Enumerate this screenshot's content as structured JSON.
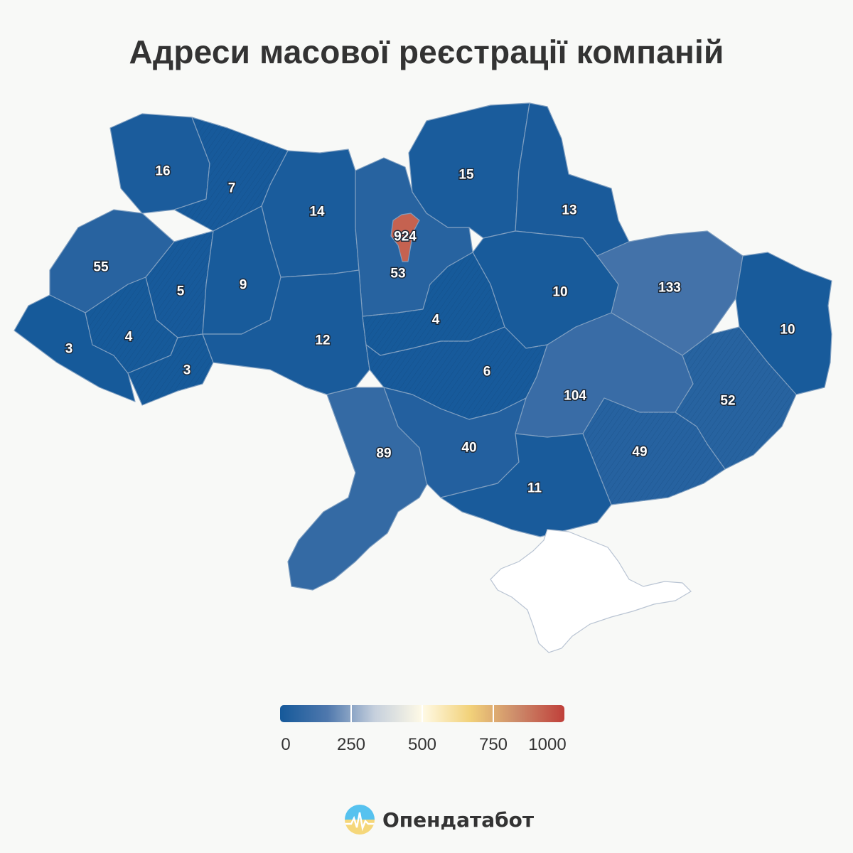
{
  "title": "Адреси масової реєстрації компаній",
  "scale": {
    "min": 0,
    "max": 1000,
    "ticks": [
      "0",
      "250",
      "500",
      "750",
      "1000"
    ],
    "colors": [
      "#15599a",
      "#4f78ad",
      "#c6d0dd",
      "#fffae6",
      "#f2d27a",
      "#cc8a6a",
      "#c0403a"
    ]
  },
  "regions": [
    {
      "name": "Волинська",
      "value": 16,
      "label": "16"
    },
    {
      "name": "Рівненська",
      "value": 7,
      "label": "7"
    },
    {
      "name": "Житомирська",
      "value": 14,
      "label": "14"
    },
    {
      "name": "Київська",
      "value": 53,
      "label": "53"
    },
    {
      "name": "м. Київ",
      "value": 924,
      "label": "924"
    },
    {
      "name": "Чернігівська",
      "value": 15,
      "label": "15"
    },
    {
      "name": "Сумська",
      "value": 13,
      "label": "13"
    },
    {
      "name": "Львівська",
      "value": 55,
      "label": "55"
    },
    {
      "name": "Тернопільська",
      "value": 5,
      "label": "5"
    },
    {
      "name": "Хмельницька",
      "value": 9,
      "label": "9"
    },
    {
      "name": "Полтавська",
      "value": 10,
      "label": "10"
    },
    {
      "name": "Харківська",
      "value": 133,
      "label": "133"
    },
    {
      "name": "Луганська",
      "value": 10,
      "label": "10"
    },
    {
      "name": "Закарпатська",
      "value": 3,
      "label": "3"
    },
    {
      "name": "Івано-Франківська",
      "value": 4,
      "label": "4"
    },
    {
      "name": "Чернівецька",
      "value": 3,
      "label": "3"
    },
    {
      "name": "Вінницька",
      "value": 12,
      "label": "12"
    },
    {
      "name": "Черкаська",
      "value": 4,
      "label": "4"
    },
    {
      "name": "Кіровоградська",
      "value": 6,
      "label": "6"
    },
    {
      "name": "Дніпропетровська",
      "value": 104,
      "label": "104"
    },
    {
      "name": "Донецька",
      "value": 52,
      "label": "52"
    },
    {
      "name": "Одеська",
      "value": 89,
      "label": "89"
    },
    {
      "name": "Миколаївська",
      "value": 40,
      "label": "40"
    },
    {
      "name": "Херсонська",
      "value": 11,
      "label": "11"
    },
    {
      "name": "Запорізька",
      "value": 49,
      "label": "49"
    }
  ],
  "brand": {
    "name": "Опендатабот",
    "icon": "opendatabot-logo-icon"
  }
}
